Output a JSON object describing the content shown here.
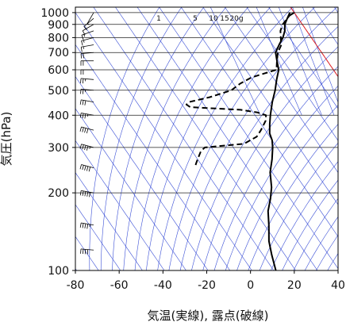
{
  "chart_data": {
    "type": "line",
    "title": "",
    "xlabel": "気温(実線), 露点(破線)",
    "ylabel": "気圧(hPa)",
    "x_ticks": [
      -80,
      -60,
      -40,
      -20,
      0,
      20,
      40
    ],
    "xlim": [
      -80,
      40
    ],
    "y_scale": "log",
    "ylim": [
      1050,
      100
    ],
    "y_ticks": [
      100,
      200,
      300,
      400,
      500,
      600,
      700,
      800,
      900,
      1000
    ],
    "mixing_ratio_labels": [
      {
        "text": "1",
        "value": 1
      },
      {
        "text": "5",
        "value": 5
      },
      {
        "text": "10",
        "value": 10
      },
      {
        "text": "15",
        "value": 15
      },
      {
        "text": "20g",
        "value": 20
      }
    ],
    "colors": {
      "temperature": "#000000",
      "dewpoint": "#000000",
      "background_lines": "#3a4fd6",
      "reference_line": "#e32020",
      "grid": "#222222"
    },
    "series": [
      {
        "key": "temperature",
        "style": "solid",
        "points": [
          {
            "p": 1000,
            "t": 20
          },
          {
            "p": 975,
            "t": 17
          },
          {
            "p": 950,
            "t": 15
          },
          {
            "p": 900,
            "t": 12
          },
          {
            "p": 850,
            "t": 10
          },
          {
            "p": 800,
            "t": 7
          },
          {
            "p": 750,
            "t": 3
          },
          {
            "p": 700,
            "t": -1
          },
          {
            "p": 650,
            "t": -3
          },
          {
            "p": 600,
            "t": -5
          },
          {
            "p": 550,
            "t": -9
          },
          {
            "p": 500,
            "t": -13
          },
          {
            "p": 450,
            "t": -18
          },
          {
            "p": 400,
            "t": -23
          },
          {
            "p": 370,
            "t": -26
          },
          {
            "p": 340,
            "t": -29
          },
          {
            "p": 320,
            "t": -30
          },
          {
            "p": 300,
            "t": -32
          },
          {
            "p": 270,
            "t": -36
          },
          {
            "p": 240,
            "t": -41
          },
          {
            "p": 210,
            "t": -45
          },
          {
            "p": 190,
            "t": -49
          },
          {
            "p": 170,
            "t": -54
          },
          {
            "p": 150,
            "t": -58
          },
          {
            "p": 130,
            "t": -63
          },
          {
            "p": 115,
            "t": -66
          },
          {
            "p": 100,
            "t": -69
          }
        ]
      },
      {
        "key": "dewpoint",
        "style": "dashed",
        "points": [
          {
            "p": 1000,
            "t": 18
          },
          {
            "p": 950,
            "t": 15
          },
          {
            "p": 900,
            "t": 11
          },
          {
            "p": 850,
            "t": 8
          },
          {
            "p": 800,
            "t": 6
          },
          {
            "p": 750,
            "t": 4
          },
          {
            "p": 700,
            "t": 0
          },
          {
            "p": 650,
            "t": -3
          },
          {
            "p": 600,
            "t": -6
          },
          {
            "p": 580,
            "t": -13
          },
          {
            "p": 560,
            "t": -20
          },
          {
            "p": 530,
            "t": -27
          },
          {
            "p": 500,
            "t": -33
          },
          {
            "p": 470,
            "t": -45
          },
          {
            "p": 450,
            "t": -56
          },
          {
            "p": 440,
            "t": -58
          },
          {
            "p": 430,
            "t": -57
          },
          {
            "p": 420,
            "t": -35
          },
          {
            "p": 410,
            "t": -28
          },
          {
            "p": 400,
            "t": -25
          },
          {
            "p": 380,
            "t": -27
          },
          {
            "p": 350,
            "t": -32
          },
          {
            "p": 330,
            "t": -36
          },
          {
            "p": 310,
            "t": -44
          },
          {
            "p": 300,
            "t": -63
          },
          {
            "p": 290,
            "t": -66
          },
          {
            "p": 270,
            "t": -70
          },
          {
            "p": 260,
            "t": -72
          },
          {
            "p": 250,
            "t": -74
          }
        ]
      }
    ],
    "wind_barbs": [
      {
        "p": 1000,
        "dir": 210,
        "kt": 5
      },
      {
        "p": 950,
        "dir": 230,
        "kt": 10
      },
      {
        "p": 900,
        "dir": 240,
        "kt": 10
      },
      {
        "p": 850,
        "dir": 250,
        "kt": 15
      },
      {
        "p": 800,
        "dir": 255,
        "kt": 15
      },
      {
        "p": 750,
        "dir": 260,
        "kt": 15
      },
      {
        "p": 700,
        "dir": 265,
        "kt": 20
      },
      {
        "p": 650,
        "dir": 270,
        "kt": 20
      },
      {
        "p": 600,
        "dir": 270,
        "kt": 20
      },
      {
        "p": 550,
        "dir": 275,
        "kt": 25
      },
      {
        "p": 500,
        "dir": 275,
        "kt": 25
      },
      {
        "p": 450,
        "dir": 280,
        "kt": 30
      },
      {
        "p": 400,
        "dir": 280,
        "kt": 35
      },
      {
        "p": 350,
        "dir": 285,
        "kt": 40
      },
      {
        "p": 300,
        "dir": 285,
        "kt": 45
      },
      {
        "p": 250,
        "dir": 285,
        "kt": 50
      },
      {
        "p": 200,
        "dir": 280,
        "kt": 50
      },
      {
        "p": 150,
        "dir": 280,
        "kt": 45
      },
      {
        "p": 120,
        "dir": 275,
        "kt": 40
      },
      {
        "p": 100,
        "dir": 270,
        "kt": 35
      }
    ]
  }
}
